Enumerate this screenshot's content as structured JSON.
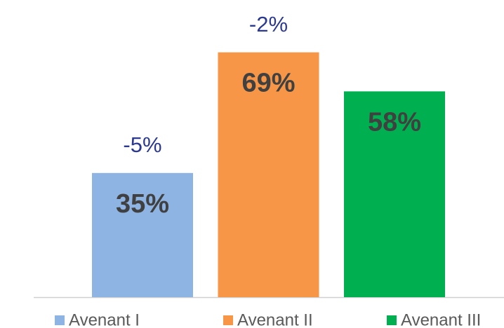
{
  "chart_data": {
    "type": "bar",
    "series": [
      {
        "name": "Avenant I",
        "color": "#8eb4e3",
        "values": [
          35
        ],
        "value_labels": [
          "35%"
        ]
      },
      {
        "name": "Avenant II",
        "color": "#f79646",
        "values": [
          69
        ],
        "value_labels": [
          "69%"
        ]
      },
      {
        "name": "Avenant III",
        "color": "#00b050",
        "values": [
          58
        ],
        "value_labels": [
          "58%"
        ]
      }
    ],
    "annotations": [
      "-5%",
      "-2%"
    ],
    "ylim": [
      0,
      80
    ]
  }
}
